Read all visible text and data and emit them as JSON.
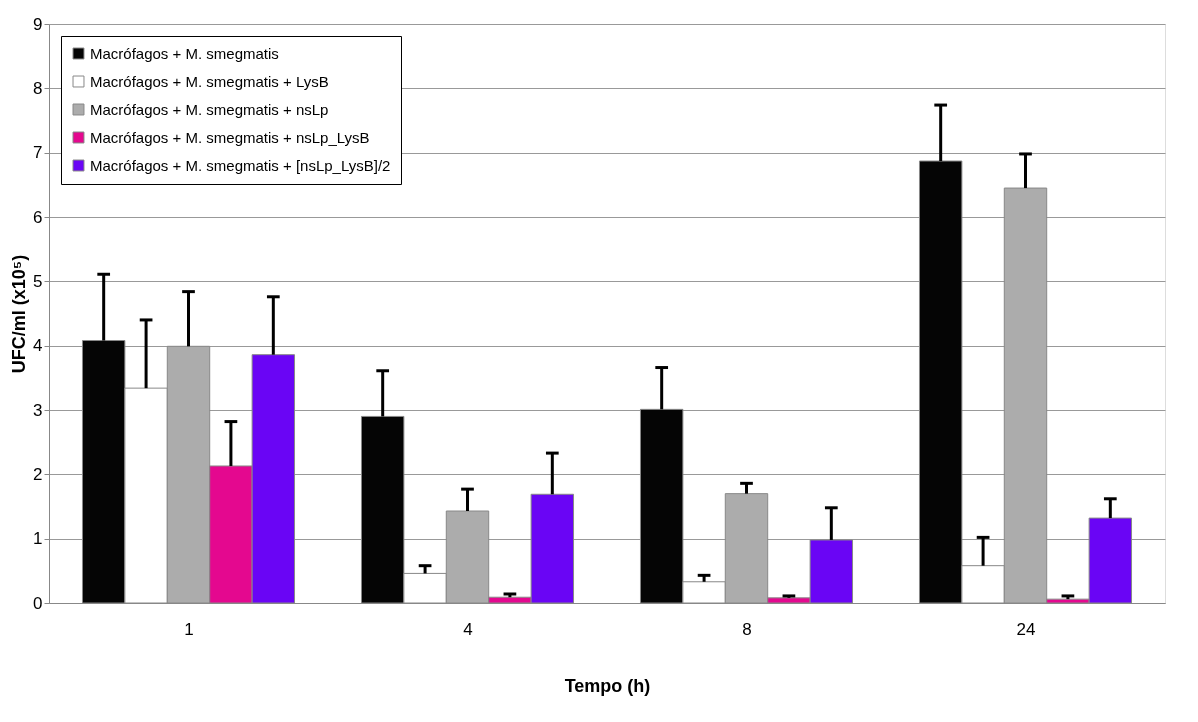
{
  "chart_data": {
    "type": "bar",
    "xlabel": "Tempo (h)",
    "ylabel": "UFC/ml (x10⁵)",
    "categories": [
      "1",
      "4",
      "8",
      "24"
    ],
    "ylim": [
      0,
      9
    ],
    "yticks": [
      0,
      1,
      2,
      3,
      4,
      5,
      6,
      7,
      8,
      9
    ],
    "grid": "y",
    "legend": "top left",
    "series": [
      {
        "name": "Macrófagos + M. smegmatis",
        "color": "#050505",
        "values": [
          4.08,
          2.9,
          3.01,
          6.87
        ],
        "errors": [
          [
            4.08,
            5.11
          ],
          [
            2.9,
            3.61
          ],
          [
            3.01,
            3.66
          ],
          [
            6.87,
            7.74
          ]
        ]
      },
      {
        "name": "Macrófagos + M. smegmatis + LysB",
        "color": "#ffffff",
        "values": [
          3.34,
          0.46,
          0.33,
          0.58
        ],
        "errors": [
          [
            3.34,
            4.4
          ],
          [
            0.46,
            0.58
          ],
          [
            0.33,
            0.43
          ],
          [
            0.58,
            1.02
          ]
        ]
      },
      {
        "name": "Macrófagos + M. smegmatis + nsLp",
        "color": "#acacac",
        "values": [
          3.99,
          1.43,
          1.7,
          6.45
        ],
        "errors": [
          [
            3.99,
            4.84
          ],
          [
            1.43,
            1.77
          ],
          [
            1.7,
            1.86
          ],
          [
            6.45,
            6.98
          ]
        ]
      },
      {
        "name": "Macrófagos + M. smegmatis + nsLp_LysB",
        "color": "#e4088f",
        "values": [
          2.13,
          0.09,
          0.08,
          0.06
        ],
        "errors": [
          [
            2.13,
            2.82
          ],
          [
            0.09,
            0.14
          ],
          [
            0.08,
            0.11
          ],
          [
            0.06,
            0.11
          ]
        ]
      },
      {
        "name": "Macrófagos + M. smegmatis + [nsLp_LysB]/2",
        "color": "#6a05f5",
        "values": [
          3.86,
          1.69,
          0.98,
          1.32
        ],
        "errors": [
          [
            3.86,
            4.76
          ],
          [
            1.69,
            2.33
          ],
          [
            0.98,
            1.48
          ],
          [
            1.32,
            1.62
          ]
        ]
      }
    ]
  }
}
